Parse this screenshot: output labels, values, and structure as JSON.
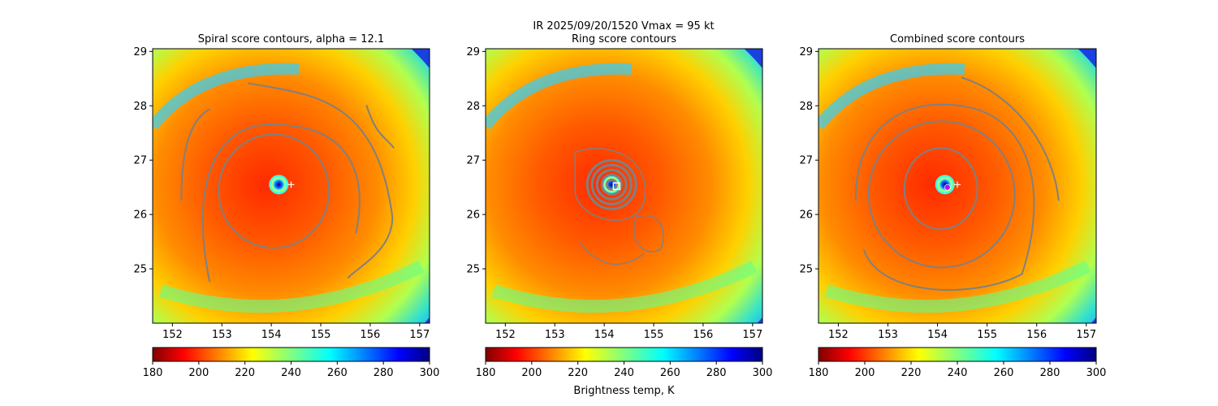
{
  "suptitle_line1": "IR  2025/09/20/1520    Vmax = 95 kt",
  "chart_data": [
    {
      "type": "heatmap",
      "title": "Spiral score contours, alpha = 12.1",
      "x_ticks": [
        152,
        153,
        154,
        155,
        156,
        157
      ],
      "y_ticks": [
        25,
        26,
        27,
        28,
        29
      ],
      "xlim": [
        151.6,
        157.2
      ],
      "ylim": [
        24.0,
        29.05
      ],
      "center": [
        154.15,
        26.55
      ],
      "first_guess": [
        154.4,
        26.55
      ],
      "colorbar": {
        "ticks": [
          180,
          200,
          220,
          240,
          260,
          280,
          300
        ],
        "range": [
          180,
          300
        ],
        "label": ""
      },
      "contour_color": "#808080"
    },
    {
      "type": "heatmap",
      "title": "Ring score contours",
      "x_ticks": [
        152,
        153,
        154,
        155,
        156,
        157
      ],
      "y_ticks": [
        25,
        26,
        27,
        28,
        29
      ],
      "xlim": [
        151.6,
        157.2
      ],
      "ylim": [
        24.0,
        29.05
      ],
      "center": [
        154.15,
        26.55
      ],
      "ring_center_marker": [
        154.25,
        26.52
      ],
      "colorbar": {
        "ticks": [
          180,
          200,
          220,
          240,
          260,
          280,
          300
        ],
        "range": [
          180,
          300
        ],
        "label": "Brightness temp, K"
      },
      "contour_color": "#808080"
    },
    {
      "type": "heatmap",
      "title": "Combined score contours",
      "x_ticks": [
        152,
        153,
        154,
        155,
        156,
        157
      ],
      "y_ticks": [
        25,
        26,
        27,
        28,
        29
      ],
      "xlim": [
        151.6,
        157.2
      ],
      "ylim": [
        24.0,
        29.05
      ],
      "center": [
        154.15,
        26.55
      ],
      "first_guess": [
        154.4,
        26.55
      ],
      "combined_marker": [
        154.2,
        26.5
      ],
      "colorbar": {
        "ticks": [
          180,
          200,
          220,
          240,
          260,
          280,
          300
        ],
        "range": [
          180,
          300
        ],
        "label": ""
      },
      "contour_color": "#808080"
    }
  ]
}
